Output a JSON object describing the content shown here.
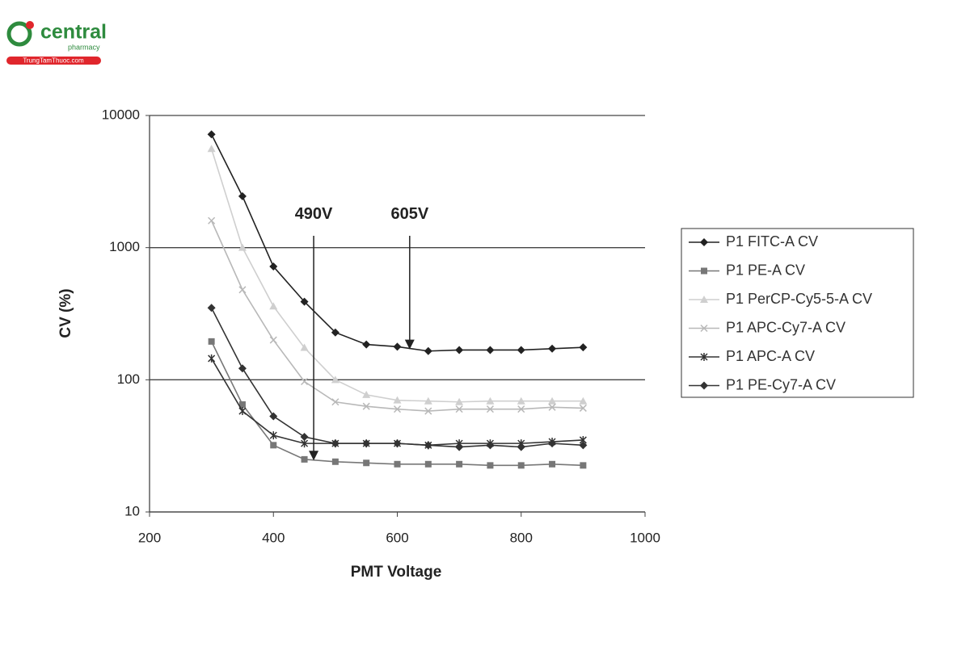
{
  "logo": {
    "name": "central",
    "sub": "pharmacy",
    "site": "TrungTamThuoc.com"
  },
  "chart_data": {
    "type": "line",
    "x_label": "PMT Voltage",
    "y_label": "CV (%)",
    "x": [
      300,
      350,
      400,
      450,
      500,
      550,
      600,
      650,
      700,
      750,
      800,
      850,
      900
    ],
    "series": [
      {
        "name": "P1 FITC-A CV",
        "color": "#222222",
        "marker": "diamond",
        "values": [
          7200,
          2450,
          720,
          390,
          228,
          185,
          178,
          165,
          168,
          168,
          168,
          172,
          176
        ]
      },
      {
        "name": "P1 PE-A CV",
        "color": "#777777",
        "marker": "square",
        "values": [
          195,
          65,
          32,
          25,
          24,
          23.5,
          23,
          23,
          23,
          22.5,
          22.5,
          23,
          22.5
        ]
      },
      {
        "name": "P1 PerCP-Cy5-5-A CV",
        "color": "#cfcfcf",
        "marker": "triangle",
        "values": [
          5600,
          1000,
          360,
          175,
          100,
          77,
          70,
          69,
          68,
          69,
          69,
          69,
          69
        ]
      },
      {
        "name": "P1 APC-Cy7-A CV",
        "color": "#b8b8b8",
        "marker": "x",
        "values": [
          1600,
          480,
          200,
          97,
          68,
          63,
          60,
          58,
          60,
          60,
          60,
          62,
          61
        ]
      },
      {
        "name": "P1 APC-A CV",
        "color": "#333333",
        "marker": "star",
        "values": [
          145,
          58,
          38,
          33,
          33,
          33,
          33,
          32,
          33,
          33,
          33,
          34,
          35
        ]
      },
      {
        "name": "P1 PE-Cy7-A CV",
        "color": "#333333",
        "marker": "diamond",
        "values": [
          350,
          122,
          53,
          37,
          33,
          33,
          33,
          32,
          31,
          32,
          31,
          33,
          32
        ]
      }
    ],
    "annotations": [
      {
        "text": "490V",
        "x": 465,
        "y_from": 1230,
        "y_to": 24.5
      },
      {
        "text": "605V",
        "x": 620,
        "y_from": 1230,
        "y_to": 170
      }
    ],
    "xlim": [
      200,
      1000
    ],
    "xticks": [
      200,
      400,
      600,
      800,
      1000
    ],
    "ylim": [
      10,
      10000
    ],
    "yticks": [
      10,
      100,
      1000,
      10000
    ],
    "log_y": true,
    "grid": true,
    "legend": "right"
  }
}
